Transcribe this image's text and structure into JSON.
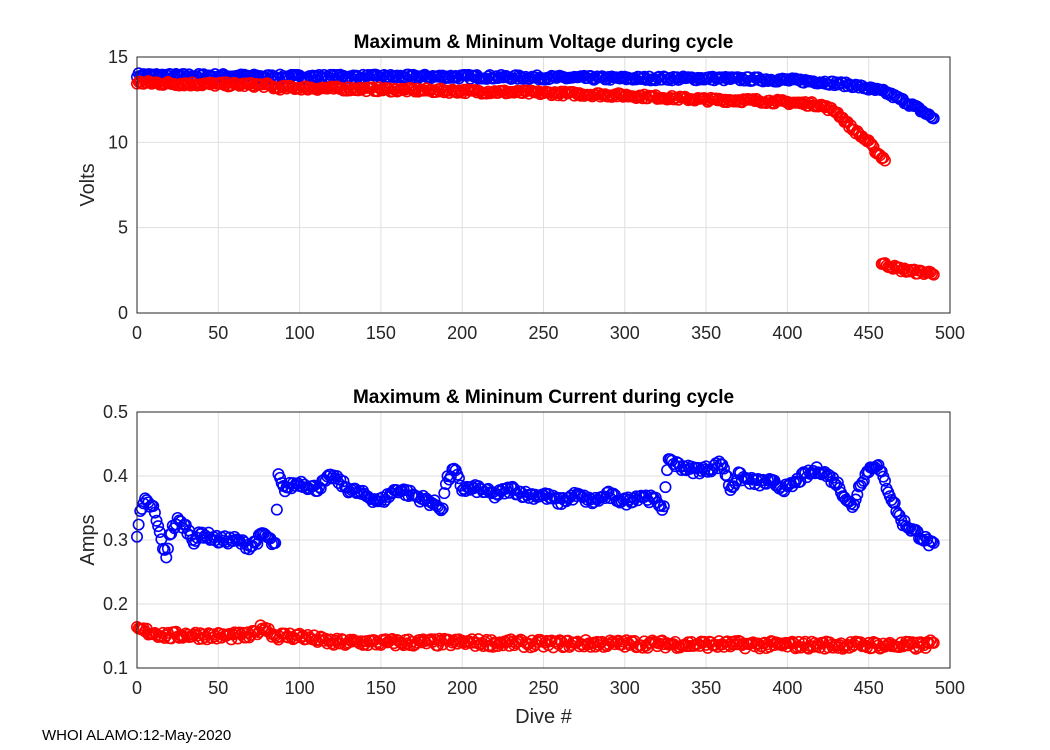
{
  "footer": "WHOI ALAMO:12-May-2020",
  "colors": {
    "max": "#0000ff",
    "min": "#ff0000",
    "grid": "#dfdfdf",
    "axis": "#262626"
  },
  "chart_data": [
    {
      "type": "scatter",
      "title": "Maximum & Mininum Voltage during cycle",
      "xlabel": "",
      "ylabel": "Volts",
      "xlim": [
        0,
        500
      ],
      "ylim": [
        0,
        15
      ],
      "xticks": [
        0,
        50,
        100,
        150,
        200,
        250,
        300,
        350,
        400,
        450,
        500
      ],
      "yticks": [
        0,
        5,
        10,
        15
      ],
      "grid": true,
      "series": [
        {
          "name": "Maximum",
          "color": "#0000ff",
          "points": [
            [
              0,
              13.95
            ],
            [
              20,
              13.9
            ],
            [
              50,
              13.9
            ],
            [
              80,
              13.85
            ],
            [
              100,
              13.85
            ],
            [
              150,
              13.85
            ],
            [
              200,
              13.85
            ],
            [
              250,
              13.8
            ],
            [
              300,
              13.75
            ],
            [
              330,
              13.75
            ],
            [
              350,
              13.75
            ],
            [
              380,
              13.7
            ],
            [
              400,
              13.65
            ],
            [
              420,
              13.55
            ],
            [
              440,
              13.35
            ],
            [
              450,
              13.15
            ],
            [
              460,
              12.95
            ],
            [
              470,
              12.5
            ],
            [
              480,
              12.0
            ],
            [
              490,
              11.4
            ]
          ]
        },
        {
          "name": "Minimum",
          "color": "#ff0000",
          "points": [
            [
              0,
              13.5
            ],
            [
              20,
              13.45
            ],
            [
              50,
              13.4
            ],
            [
              80,
              13.35
            ],
            [
              85,
              13.2
            ],
            [
              100,
              13.2
            ],
            [
              150,
              13.1
            ],
            [
              200,
              13.0
            ],
            [
              250,
              12.9
            ],
            [
              300,
              12.75
            ],
            [
              330,
              12.6
            ],
            [
              350,
              12.5
            ],
            [
              380,
              12.45
            ],
            [
              400,
              12.35
            ],
            [
              420,
              12.2
            ],
            [
              430,
              11.8
            ],
            [
              440,
              10.8
            ],
            [
              450,
              10.0
            ],
            [
              455,
              9.4
            ],
            [
              460,
              9.0
            ],
            [
              458,
              2.9
            ],
            [
              465,
              2.7
            ],
            [
              470,
              2.55
            ],
            [
              480,
              2.4
            ],
            [
              490,
              2.35
            ]
          ]
        }
      ]
    },
    {
      "type": "scatter",
      "title": "Maximum & Mininum Current during cycle",
      "xlabel": "Dive #",
      "ylabel": "Amps",
      "xlim": [
        0,
        500
      ],
      "ylim": [
        0.1,
        0.5
      ],
      "xticks": [
        0,
        50,
        100,
        150,
        200,
        250,
        300,
        350,
        400,
        450,
        500
      ],
      "yticks": [
        0.1,
        0.2,
        0.3,
        0.4,
        0.5
      ],
      "ytick_labels": [
        "0.1",
        "0.2",
        "0.3",
        "0.4",
        "0.5"
      ],
      "grid": true,
      "series": [
        {
          "name": "Maximum",
          "color": "#0000ff",
          "points": [
            [
              0,
              0.31
            ],
            [
              2,
              0.34
            ],
            [
              5,
              0.36
            ],
            [
              10,
              0.35
            ],
            [
              15,
              0.3
            ],
            [
              18,
              0.27
            ],
            [
              20,
              0.31
            ],
            [
              25,
              0.33
            ],
            [
              30,
              0.32
            ],
            [
              35,
              0.3
            ],
            [
              40,
              0.31
            ],
            [
              50,
              0.3
            ],
            [
              60,
              0.3
            ],
            [
              70,
              0.29
            ],
            [
              78,
              0.31
            ],
            [
              85,
              0.29
            ],
            [
              87,
              0.4
            ],
            [
              90,
              0.38
            ],
            [
              100,
              0.39
            ],
            [
              110,
              0.38
            ],
            [
              120,
              0.4
            ],
            [
              130,
              0.38
            ],
            [
              140,
              0.37
            ],
            [
              150,
              0.36
            ],
            [
              160,
              0.38
            ],
            [
              170,
              0.37
            ],
            [
              180,
              0.36
            ],
            [
              188,
              0.35
            ],
            [
              190,
              0.39
            ],
            [
              195,
              0.41
            ],
            [
              200,
              0.38
            ],
            [
              210,
              0.38
            ],
            [
              220,
              0.37
            ],
            [
              230,
              0.38
            ],
            [
              240,
              0.37
            ],
            [
              250,
              0.37
            ],
            [
              260,
              0.36
            ],
            [
              270,
              0.37
            ],
            [
              280,
              0.36
            ],
            [
              290,
              0.37
            ],
            [
              300,
              0.36
            ],
            [
              310,
              0.37
            ],
            [
              320,
              0.36
            ],
            [
              324,
              0.35
            ],
            [
              327,
              0.43
            ],
            [
              330,
              0.42
            ],
            [
              340,
              0.41
            ],
            [
              350,
              0.41
            ],
            [
              360,
              0.42
            ],
            [
              365,
              0.38
            ],
            [
              370,
              0.4
            ],
            [
              380,
              0.39
            ],
            [
              390,
              0.39
            ],
            [
              400,
              0.38
            ],
            [
              410,
              0.4
            ],
            [
              420,
              0.41
            ],
            [
              430,
              0.39
            ],
            [
              440,
              0.35
            ],
            [
              445,
              0.39
            ],
            [
              450,
              0.41
            ],
            [
              455,
              0.42
            ],
            [
              460,
              0.39
            ],
            [
              465,
              0.36
            ],
            [
              470,
              0.33
            ],
            [
              480,
              0.31
            ],
            [
              490,
              0.29
            ]
          ]
        },
        {
          "name": "Minimum",
          "color": "#ff0000",
          "points": [
            [
              0,
              0.16
            ],
            [
              10,
              0.155
            ],
            [
              20,
              0.15
            ],
            [
              30,
              0.152
            ],
            [
              50,
              0.15
            ],
            [
              70,
              0.15
            ],
            [
              78,
              0.165
            ],
            [
              85,
              0.15
            ],
            [
              100,
              0.15
            ],
            [
              120,
              0.14
            ],
            [
              150,
              0.14
            ],
            [
              200,
              0.14
            ],
            [
              250,
              0.138
            ],
            [
              300,
              0.138
            ],
            [
              350,
              0.137
            ],
            [
              400,
              0.136
            ],
            [
              450,
              0.136
            ],
            [
              480,
              0.135
            ],
            [
              490,
              0.138
            ]
          ]
        }
      ]
    }
  ]
}
